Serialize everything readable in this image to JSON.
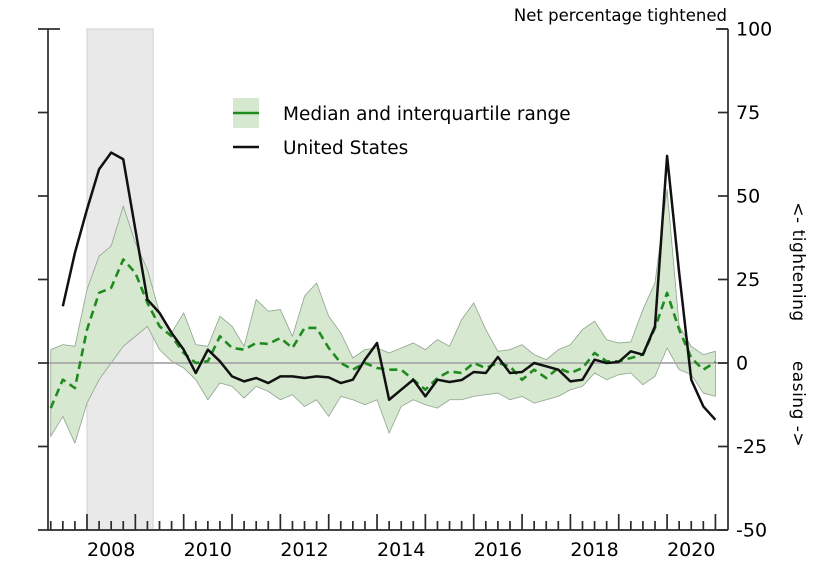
{
  "title": "Net percentage tightened",
  "right_axis": {
    "tightening": "<- tightening",
    "easing": "easing ->"
  },
  "legend": {
    "items": [
      {
        "label": "Median and interquartile range",
        "swatch": "green-band-with-line"
      },
      {
        "label": "United States",
        "swatch": "black-line"
      }
    ]
  },
  "colors": {
    "band_fill": "#d6e8d0",
    "band_edge": "#8fa38f",
    "median_green": "#1f8b1f",
    "us_black": "#111111",
    "zero_line": "#a8a8a8",
    "recession_fill": "#e9e9e9",
    "recession_edge": "#d2d2d2",
    "axis": "#2a2a2a"
  },
  "chart_data": {
    "type": "line",
    "title": "Net percentage tightened",
    "ylabel_right": "<- tightening   easing ->",
    "ylim": [
      -50,
      100
    ],
    "yticks": [
      100,
      75,
      50,
      25,
      0,
      -25,
      -50
    ],
    "xtick_labels": [
      "2008",
      "2010",
      "2012",
      "2014",
      "2016",
      "2018",
      "2020"
    ],
    "x_minor_tick": "quarterly",
    "x_major_tick": "yearly",
    "grid": "zero-line-only",
    "legend_position": "upper-left-inside",
    "shaded_region": {
      "label": "recession",
      "from": "2008Q1",
      "to": "2009Q2"
    },
    "quarters": [
      "2007Q2",
      "2007Q3",
      "2007Q4",
      "2008Q1",
      "2008Q2",
      "2008Q3",
      "2008Q4",
      "2009Q1",
      "2009Q2",
      "2009Q3",
      "2009Q4",
      "2010Q1",
      "2010Q2",
      "2010Q3",
      "2010Q4",
      "2011Q1",
      "2011Q2",
      "2011Q3",
      "2011Q4",
      "2012Q1",
      "2012Q2",
      "2012Q3",
      "2012Q4",
      "2013Q1",
      "2013Q2",
      "2013Q3",
      "2013Q4",
      "2014Q1",
      "2014Q2",
      "2014Q3",
      "2014Q4",
      "2015Q1",
      "2015Q2",
      "2015Q3",
      "2015Q4",
      "2016Q1",
      "2016Q2",
      "2016Q3",
      "2016Q4",
      "2017Q1",
      "2017Q2",
      "2017Q3",
      "2017Q4",
      "2018Q1",
      "2018Q2",
      "2018Q3",
      "2018Q4",
      "2019Q1",
      "2019Q2",
      "2019Q3",
      "2019Q4",
      "2020Q1",
      "2020Q2",
      "2020Q3",
      "2020Q4",
      "2021Q1"
    ],
    "series": [
      {
        "name": "Interquartile range upper (75th percentile)",
        "values": [
          4,
          5.5,
          5,
          22,
          32,
          35,
          47,
          36,
          28,
          15,
          9,
          15,
          5.5,
          5,
          14,
          11,
          5,
          19,
          15.5,
          16,
          8,
          20,
          24,
          14,
          9,
          1.5,
          4,
          4.5,
          3,
          4.5,
          6,
          4,
          7,
          5,
          13,
          18,
          10,
          3.5,
          4,
          5.5,
          2.5,
          1,
          4,
          5.5,
          10,
          12.5,
          7,
          6,
          6.3,
          16,
          24,
          52,
          11,
          5,
          2.5,
          3.5
        ]
      },
      {
        "name": "Median",
        "values": [
          -13.5,
          -5,
          -7.5,
          10,
          21,
          22.5,
          31,
          27,
          18,
          11,
          8,
          3,
          0,
          0.5,
          8,
          4.5,
          4,
          6,
          5.7,
          7.5,
          4.5,
          10.5,
          10.5,
          4.5,
          0,
          -2,
          0,
          -1.5,
          -2,
          -2,
          -5,
          -8,
          -4.5,
          -2.5,
          -3,
          0,
          -1.5,
          0,
          -1,
          -5,
          -2,
          -4.5,
          -1.5,
          -3,
          -1.5,
          3,
          0.5,
          0.5,
          1.5,
          2.5,
          10.5,
          21,
          10,
          1.5,
          -2,
          0.3
        ]
      },
      {
        "name": "Interquartile range lower (25th percentile)",
        "values": [
          -22,
          -16,
          -24,
          -12,
          -5,
          0,
          5,
          8,
          11,
          4,
          0.5,
          -1.5,
          -5,
          -11,
          -6,
          -7,
          -10.5,
          -7,
          -8.5,
          -11,
          -9.5,
          -13,
          -11,
          -16,
          -10,
          -11,
          -12.5,
          -11,
          -21,
          -13,
          -11,
          -12.5,
          -13.5,
          -11,
          -11,
          -10,
          -9.5,
          -9,
          -11,
          -10,
          -12,
          -11,
          -10,
          -8,
          -7,
          -3,
          -5,
          -3.5,
          -3,
          -6.5,
          -4,
          4.5,
          -2,
          -3.5,
          -9,
          -10
        ]
      },
      {
        "name": "United States",
        "values": [
          null,
          17,
          33,
          46,
          58,
          63,
          61,
          40,
          19,
          15,
          9,
          4,
          -3,
          4,
          0.5,
          -4,
          -5.5,
          -4.5,
          -6,
          -4,
          -4,
          -4.5,
          -4,
          -4.3,
          -6,
          -5,
          1,
          6,
          -11,
          -8,
          -5,
          -10,
          -5,
          -5.7,
          -5.1,
          -2.7,
          -3,
          1.8,
          -3,
          -2.7,
          0,
          -1,
          -2,
          -5.5,
          -5,
          1,
          0,
          0.3,
          3.5,
          2.5,
          11,
          62,
          27,
          -5,
          -13,
          -17
        ]
      }
    ]
  }
}
